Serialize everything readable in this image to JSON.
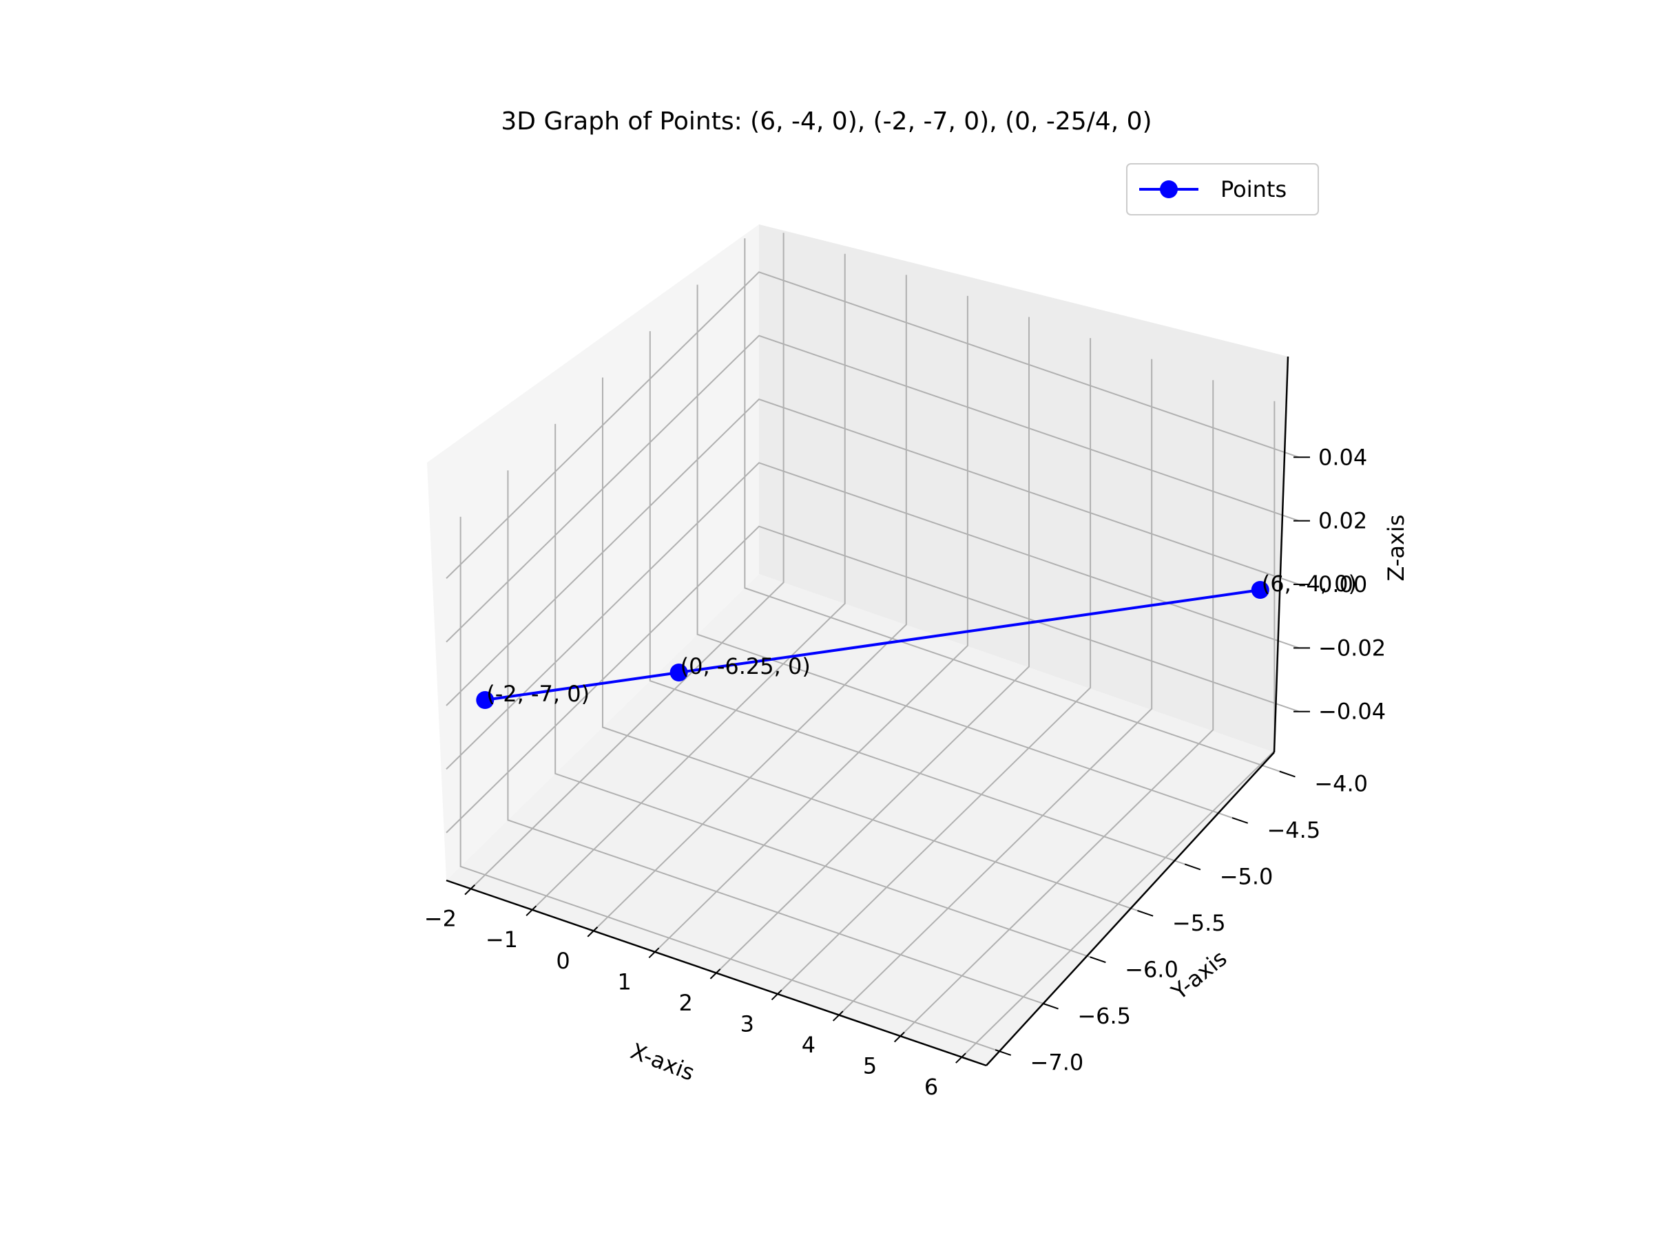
{
  "chart_data": {
    "type": "line",
    "projection": "3d",
    "title": "3D Graph of Points: (6, -4, 0), (-2, -7, 0), (0, -25/4, 0)",
    "xlabel": "X-axis",
    "ylabel": "Y-axis",
    "zlabel": "Z-axis",
    "xlim": [
      -2.4,
      6.4
    ],
    "ylim": [
      -7.15,
      -3.85
    ],
    "zlim": [
      -0.055,
      0.055
    ],
    "xticks": [
      "−2",
      "−1",
      "0",
      "1",
      "2",
      "3",
      "4",
      "5",
      "6"
    ],
    "xtick_values": [
      -2,
      -1,
      0,
      1,
      2,
      3,
      4,
      5,
      6
    ],
    "yticks": [
      "−7.0",
      "−6.5",
      "−6.0",
      "−5.5",
      "−5.0",
      "−4.5",
      "−4.0"
    ],
    "ytick_values": [
      -7.0,
      -6.5,
      -6.0,
      -5.5,
      -5.0,
      -4.5,
      -4.0
    ],
    "zticks": [
      "−0.04",
      "−0.02",
      "0.00",
      "0.02",
      "0.04"
    ],
    "ztick_values": [
      -0.04,
      -0.02,
      0.0,
      0.02,
      0.04
    ],
    "grid": true,
    "legend_position": "top-right",
    "series": [
      {
        "name": "Points",
        "color": "#0000ff",
        "marker": "circle",
        "points": [
          {
            "x": 6,
            "y": -4,
            "z": 0,
            "label": "(6, -4, 0)"
          },
          {
            "x": -2,
            "y": -7,
            "z": 0,
            "label": "(-2, -7, 0)"
          },
          {
            "x": 0,
            "y": -6.25,
            "z": 0,
            "label": "(0, -6.25, 0)"
          }
        ]
      }
    ]
  }
}
